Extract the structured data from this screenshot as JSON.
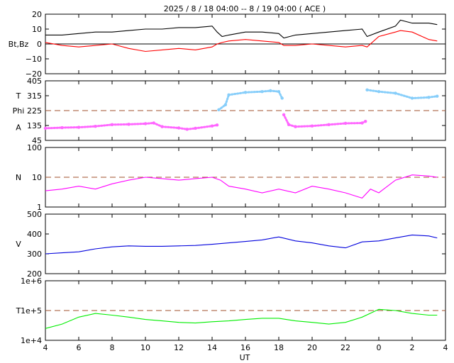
{
  "title": "2025 /  8 / 18   04:00 --  8 / 19  04:00 ( ACE )",
  "xlabel": "UT",
  "x_ticks": [
    "4",
    "6",
    "8",
    "10",
    "12",
    "14",
    "16",
    "18",
    "20",
    "22",
    "0",
    "2",
    "4"
  ],
  "colors": {
    "bt": "#000000",
    "bz": "#ff0000",
    "theta": "#87cefa",
    "phi": "#ff66ff",
    "density": "#ff00ff",
    "speed": "#0000dd",
    "temperature": "#00ee00",
    "ref_line": "#a0522d",
    "zero_line": "#000000"
  },
  "chart_data": [
    {
      "type": "line",
      "ylabel": "Bt,Bz",
      "ylim": [
        -20,
        20
      ],
      "y_ticks": [
        "20",
        "10",
        "0",
        "−10",
        "−20"
      ],
      "x_range_hours": [
        4,
        28
      ],
      "series": [
        {
          "key": "bt",
          "x": [
            4,
            5,
            6,
            7,
            8,
            9,
            10,
            11,
            12,
            13,
            14,
            14.3,
            14.6,
            15,
            16,
            17,
            18,
            18.3,
            19,
            20,
            21,
            22,
            23,
            23.3,
            24,
            25,
            25.3,
            26,
            27,
            27.5
          ],
          "y": [
            6,
            6,
            7,
            8,
            8,
            9,
            10,
            10,
            11,
            11,
            12,
            8,
            5,
            6,
            8,
            8,
            7,
            4,
            6,
            7,
            8,
            9,
            10,
            5,
            8,
            12,
            16,
            14,
            14,
            13
          ]
        },
        {
          "key": "bz",
          "x": [
            4,
            5,
            6,
            7,
            8,
            9,
            10,
            11,
            12,
            13,
            14,
            14.3,
            14.6,
            15,
            16,
            17,
            18,
            18.3,
            19,
            20,
            21,
            22,
            23,
            23.3,
            24,
            25,
            25.3,
            26,
            27,
            27.5
          ],
          "y": [
            1,
            -1,
            -2,
            -1,
            0,
            -3,
            -5,
            -4,
            -3,
            -4,
            -2,
            0,
            1,
            2,
            3,
            2,
            1,
            -1,
            -1,
            0,
            -1,
            -2,
            -1,
            -2,
            5,
            8,
            9,
            8,
            3,
            2
          ]
        }
      ]
    },
    {
      "type": "scatter",
      "ylabel_top": "T",
      "ylabel_mid": "Phi",
      "ylabel_bottom": "A",
      "ylim": [
        45,
        405
      ],
      "y_ticks": [
        "405",
        "315",
        "225",
        "135",
        "45"
      ],
      "ref_y": 225,
      "series": [
        {
          "key": "phi",
          "x": [
            4,
            5,
            6,
            7,
            8,
            9,
            10,
            10.5,
            11,
            12,
            12.5,
            13,
            14,
            14.3
          ],
          "y": [
            118,
            122,
            124,
            130,
            140,
            142,
            146,
            150,
            128,
            120,
            112,
            118,
            132,
            138
          ]
        },
        {
          "key": "theta",
          "x": [
            14.4,
            14.8,
            15,
            16,
            17,
            17.5,
            18,
            18.2
          ],
          "y": [
            230,
            260,
            320,
            335,
            340,
            345,
            340,
            300
          ]
        },
        {
          "key": "phi",
          "x": [
            18.3,
            18.6,
            19,
            20,
            21,
            22,
            23,
            23.2
          ],
          "y": [
            200,
            140,
            128,
            132,
            140,
            148,
            150,
            160
          ]
        },
        {
          "key": "theta",
          "x": [
            23.3,
            24,
            25,
            26,
            27,
            27.5
          ],
          "y": [
            350,
            340,
            330,
            300,
            305,
            312
          ]
        }
      ]
    },
    {
      "type": "line",
      "ylabel": "N",
      "yscale": "log",
      "ylim": [
        1,
        100
      ],
      "y_ticks": [
        "100",
        "10",
        "1"
      ],
      "ref_y": 10,
      "series": [
        {
          "key": "density",
          "x": [
            4,
            5,
            6,
            7,
            8,
            9,
            10,
            11,
            12,
            13,
            14,
            14.5,
            15,
            16,
            17,
            18,
            19,
            20,
            21,
            22,
            23,
            23.5,
            24,
            25,
            26,
            27,
            27.5
          ],
          "y": [
            3.5,
            4,
            5,
            4,
            6,
            8,
            10,
            9,
            8,
            9,
            10,
            8,
            5,
            4,
            3,
            4,
            3,
            5,
            4,
            3,
            2,
            4,
            3,
            8,
            12,
            11,
            10
          ]
        }
      ]
    },
    {
      "type": "line",
      "ylabel": "V",
      "ylim": [
        200,
        500
      ],
      "y_ticks": [
        "500",
        "400",
        "300",
        "200"
      ],
      "series": [
        {
          "key": "speed",
          "x": [
            4,
            5,
            6,
            7,
            8,
            9,
            10,
            11,
            12,
            13,
            14,
            15,
            16,
            17,
            18,
            19,
            20,
            21,
            22,
            23,
            24,
            25,
            26,
            27,
            27.5
          ],
          "y": [
            300,
            305,
            310,
            325,
            335,
            340,
            338,
            338,
            340,
            342,
            348,
            355,
            362,
            370,
            385,
            365,
            355,
            340,
            330,
            360,
            365,
            380,
            395,
            390,
            380
          ]
        }
      ]
    },
    {
      "type": "line",
      "ylabel": "T",
      "yscale": "log",
      "ylim": [
        10000,
        1000000
      ],
      "y_ticks": [
        "1e+6",
        "1e+5",
        "1e+4"
      ],
      "ref_y": 100000,
      "series": [
        {
          "key": "temperature",
          "x": [
            4,
            5,
            6,
            7,
            8,
            9,
            10,
            11,
            12,
            13,
            14,
            15,
            16,
            17,
            18,
            19,
            20,
            21,
            22,
            23,
            24,
            25,
            26,
            27,
            27.5
          ],
          "y": [
            25000,
            35000,
            60000,
            80000,
            70000,
            60000,
            50000,
            45000,
            40000,
            38000,
            42000,
            45000,
            50000,
            55000,
            55000,
            45000,
            40000,
            35000,
            40000,
            60000,
            110000,
            100000,
            80000,
            70000,
            70000
          ]
        }
      ]
    }
  ]
}
